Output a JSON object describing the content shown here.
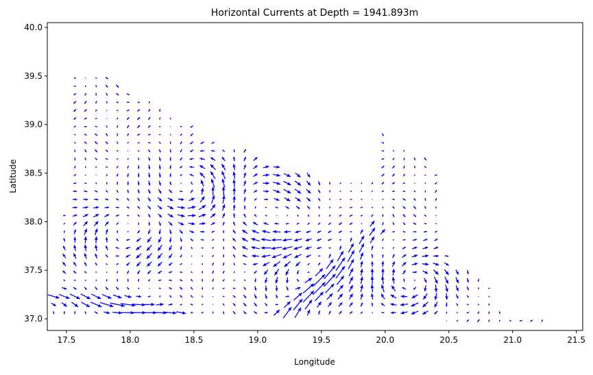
{
  "chart_data": {
    "type": "quiver",
    "title": "Horizontal Currents at Depth = 1941.893m",
    "xlabel": "Longitude",
    "ylabel": "Latitude",
    "xlim": [
      17.35,
      21.55
    ],
    "ylim": [
      36.88,
      40.05
    ],
    "xticks": [
      17.5,
      18.0,
      18.5,
      19.0,
      19.5,
      20.0,
      20.5,
      21.0,
      21.5
    ],
    "xtick_labels": [
      "17.5",
      "18.0",
      "18.5",
      "19.0",
      "19.5",
      "20.0",
      "20.5",
      "21.0",
      "21.5"
    ],
    "yticks": [
      37.0,
      37.5,
      38.0,
      38.5,
      39.0,
      39.5,
      40.0
    ],
    "ytick_labels": [
      "37.0",
      "37.5",
      "38.0",
      "38.5",
      "39.0",
      "39.5",
      "40.0"
    ],
    "grid": false,
    "arrow_color": "#0000ff",
    "grid_spacing_deg": 0.0833,
    "domain_lat_range_by_lon": [
      [
        17.4,
        37.05,
        37.3
      ],
      [
        17.5,
        37.0,
        38.1
      ],
      [
        17.6,
        37.0,
        39.5
      ],
      [
        17.7,
        37.0,
        39.5
      ],
      [
        17.8,
        37.0,
        39.5
      ],
      [
        17.9,
        37.0,
        39.4
      ],
      [
        18.0,
        37.0,
        39.35
      ],
      [
        18.1,
        37.0,
        39.25
      ],
      [
        18.2,
        37.0,
        39.15
      ],
      [
        18.3,
        37.0,
        39.1
      ],
      [
        18.4,
        37.0,
        39.05
      ],
      [
        18.5,
        37.0,
        39.0
      ],
      [
        18.6,
        37.0,
        38.85
      ],
      [
        18.7,
        37.0,
        38.8
      ],
      [
        18.8,
        37.0,
        38.75
      ],
      [
        18.9,
        37.0,
        38.75
      ],
      [
        19.0,
        37.0,
        38.7
      ],
      [
        19.1,
        37.0,
        38.6
      ],
      [
        19.2,
        37.0,
        38.55
      ],
      [
        19.3,
        37.0,
        38.5
      ],
      [
        19.4,
        37.0,
        38.5
      ],
      [
        19.5,
        37.0,
        38.45
      ],
      [
        19.6,
        37.0,
        38.45
      ],
      [
        19.7,
        37.0,
        38.45
      ],
      [
        19.8,
        37.0,
        38.45
      ],
      [
        19.9,
        37.0,
        38.45
      ],
      [
        20.0,
        37.0,
        38.9
      ],
      [
        20.1,
        37.0,
        38.75
      ],
      [
        20.2,
        37.05,
        38.7
      ],
      [
        20.3,
        37.0,
        38.7
      ],
      [
        20.4,
        37.0,
        38.5
      ],
      [
        20.5,
        36.95,
        37.65
      ],
      [
        20.6,
        36.98,
        37.5
      ],
      [
        20.7,
        36.98,
        37.4
      ],
      [
        20.8,
        36.98,
        37.35
      ],
      [
        20.9,
        36.98,
        37.1
      ],
      [
        21.0,
        36.98,
        37.05
      ],
      [
        21.1,
        36.98,
        37.05
      ],
      [
        21.2,
        36.98,
        37.03
      ]
    ],
    "eddies": [
      {
        "lon": 19.15,
        "lat": 38.05,
        "rotation": "clockwise",
        "radius_deg": 0.45
      },
      {
        "lon": 19.35,
        "lat": 37.55,
        "rotation": "counterclockwise",
        "radius_deg": 0.35
      },
      {
        "lon": 17.9,
        "lat": 37.9,
        "rotation": "clockwise",
        "radius_deg": 0.35
      },
      {
        "lon": 18.5,
        "lat": 38.3,
        "rotation": "counterclockwise",
        "radius_deg": 0.3
      },
      {
        "lon": 20.2,
        "lat": 37.35,
        "rotation": "clockwise",
        "radius_deg": 0.3
      }
    ],
    "jets": [
      {
        "from": [
          19.2,
          37.0
        ],
        "to": [
          19.9,
          37.9
        ],
        "strength": "strong"
      },
      {
        "from": [
          17.4,
          37.25
        ],
        "to": [
          18.3,
          37.05
        ],
        "strength": "strong"
      }
    ]
  }
}
